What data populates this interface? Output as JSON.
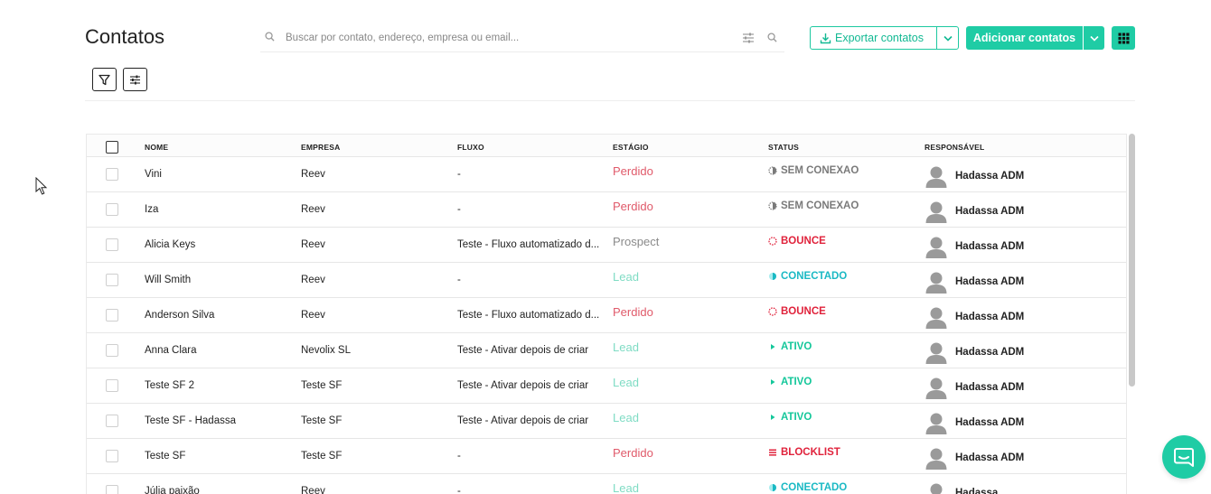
{
  "header": {
    "title": "Contatos",
    "search_placeholder": "Buscar por contato, endereço, empresa ou email...",
    "export_label": "Exportar contatos",
    "add_label": "Adicionar contatos"
  },
  "table": {
    "columns": {
      "name": "NOME",
      "company": "EMPRESA",
      "flow": "FLUXO",
      "stage": "ESTÁGIO",
      "status": "STATUS",
      "owner": "RESPONSÁVEL"
    },
    "rows": [
      {
        "name": "Vini",
        "company": "Reev",
        "flow": "-",
        "stage": "Perdido",
        "status": "SEM CONEXÃO",
        "owner": "Hadassa ADM"
      },
      {
        "name": "Iza",
        "company": "Reev",
        "flow": "-",
        "stage": "Perdido",
        "status": "SEM CONEXÃO",
        "owner": "Hadassa ADM"
      },
      {
        "name": "Alicia Keys",
        "company": "Reev",
        "flow": "Teste - Fluxo automatizado d...",
        "stage": "Prospect",
        "status": "BOUNCE",
        "owner": "Hadassa ADM"
      },
      {
        "name": "Will Smith",
        "company": "Reev",
        "flow": "-",
        "stage": "Lead",
        "status": "CONECTADO",
        "owner": "Hadassa ADM"
      },
      {
        "name": "Anderson Silva",
        "company": "Reev",
        "flow": "Teste - Fluxo automatizado d...",
        "stage": "Perdido",
        "status": "BOUNCE",
        "owner": "Hadassa ADM"
      },
      {
        "name": "Anna Clara",
        "company": "Nevolix SL",
        "flow": "Teste - Ativar depois de criar",
        "stage": "Lead",
        "status": "ATIVO",
        "owner": "Hadassa ADM"
      },
      {
        "name": "Teste SF 2",
        "company": "Teste SF",
        "flow": "Teste - Ativar depois de criar",
        "stage": "Lead",
        "status": "ATIVO",
        "owner": "Hadassa ADM"
      },
      {
        "name": "Teste SF - Hadassa",
        "company": "Teste SF",
        "flow": "Teste - Ativar depois de criar",
        "stage": "Lead",
        "status": "ATIVO",
        "owner": "Hadassa ADM"
      },
      {
        "name": "Teste SF",
        "company": "Teste SF",
        "flow": "-",
        "stage": "Perdido",
        "status": "BLOCKLIST",
        "owner": "Hadassa ADM"
      },
      {
        "name": "Júlia paixão",
        "company": "Reev",
        "flow": "-",
        "stage": "Lead",
        "status": "CONECTADO",
        "owner": "Hadassa"
      }
    ]
  },
  "colors": {
    "accent": "#1fcca5",
    "stage_perdido": "#e05a6a",
    "stage_prospect": "#8a8a8a",
    "stage_lead": "#7fdcc4",
    "status_sem_conexao": "#7a7a7a",
    "status_bounce": "#e0223b",
    "status_conectado": "#1ab9c4",
    "status_ativo": "#14c79a",
    "status_blocklist": "#e0223b"
  }
}
